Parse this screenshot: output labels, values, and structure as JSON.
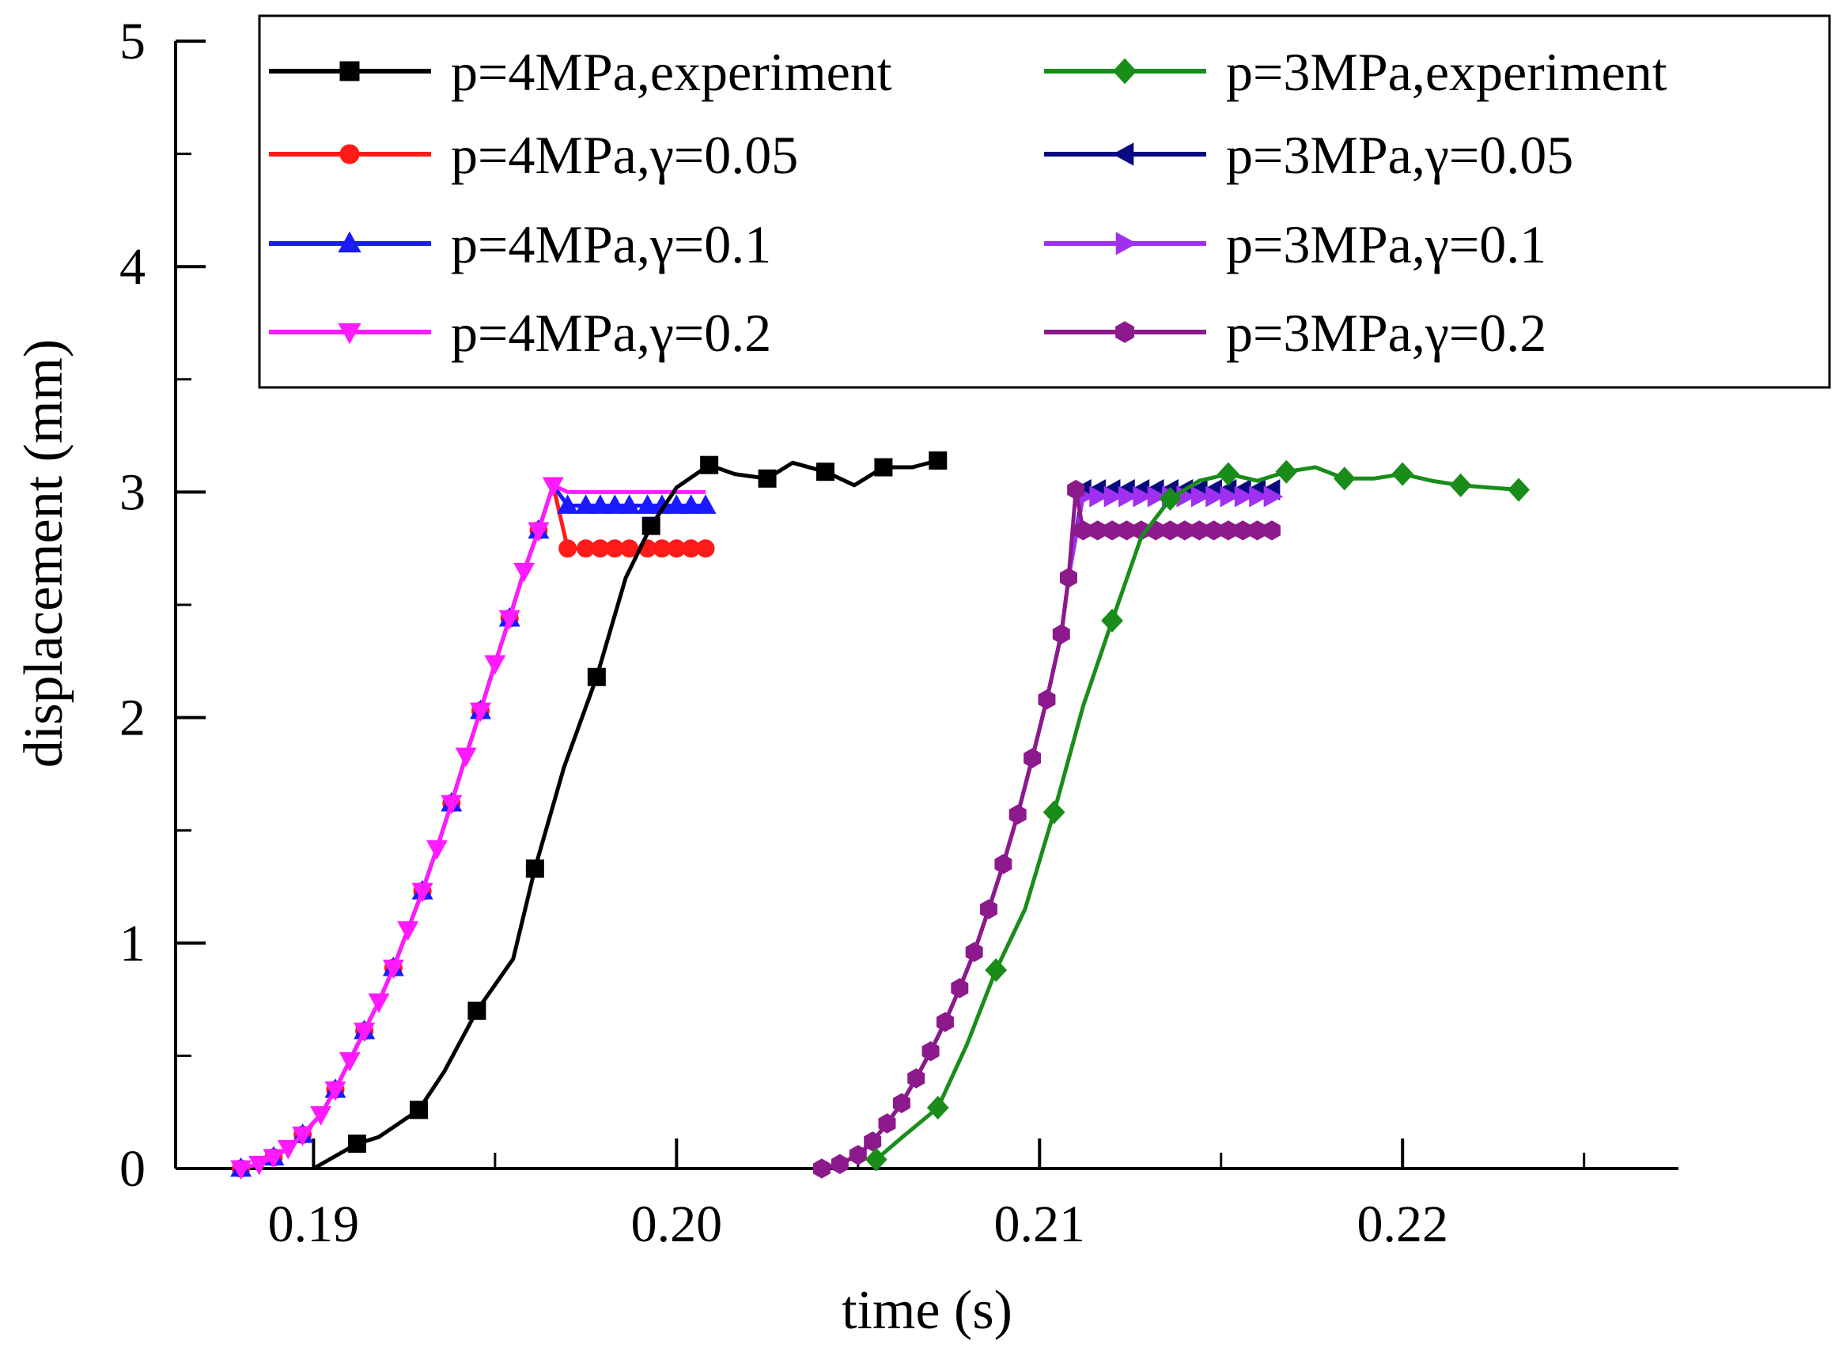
{
  "chart_data": {
    "type": "line",
    "title": "",
    "xlabel": "time (s)",
    "ylabel": "displacement (mm)",
    "xlim": [
      0.1862,
      0.2276
    ],
    "ylim": [
      0,
      5
    ],
    "xticks": [
      0.19,
      0.2,
      0.21,
      0.22
    ],
    "xtick_labels": [
      "0.19",
      "0.20",
      "0.21",
      "0.22"
    ],
    "yticks": [
      0,
      1,
      2,
      3,
      4,
      5
    ],
    "ytick_labels": [
      "0",
      "1",
      "2",
      "3",
      "4",
      "5"
    ],
    "grid": false,
    "legend_position": "top-right",
    "series": [
      {
        "name": "p=4MPa,experiment",
        "color": "#000000",
        "marker": "square",
        "x": [
          0.19,
          0.1912,
          0.1918,
          0.1929,
          0.1936,
          0.1945,
          0.1955,
          0.1961,
          0.1969,
          0.1978,
          0.1986,
          0.1993,
          0.2,
          0.2009,
          0.2016,
          0.2025,
          0.2032,
          0.2041,
          0.2049,
          0.2057,
          0.2065,
          0.2072
        ],
        "y": [
          0.0,
          0.11,
          0.14,
          0.26,
          0.43,
          0.7,
          0.93,
          1.33,
          1.78,
          2.18,
          2.62,
          2.85,
          3.02,
          3.12,
          3.08,
          3.06,
          3.13,
          3.09,
          3.03,
          3.11,
          3.11,
          3.14
        ],
        "marked": [
          false,
          true,
          false,
          true,
          false,
          true,
          false,
          true,
          false,
          true,
          false,
          true,
          false,
          true,
          false,
          true,
          false,
          true,
          false,
          true,
          false,
          true
        ]
      },
      {
        "name": "p=3MPa,experiment",
        "color": "#1a8c1a",
        "marker": "diamond",
        "x": [
          0.2055,
          0.2063,
          0.2072,
          0.208,
          0.2088,
          0.2096,
          0.2104,
          0.2112,
          0.212,
          0.2128,
          0.2136,
          0.2144,
          0.2152,
          0.216,
          0.2168,
          0.2176,
          0.2184,
          0.2192,
          0.22,
          0.2208,
          0.2216,
          0.2224,
          0.2232
        ],
        "y": [
          0.04,
          0.15,
          0.27,
          0.55,
          0.88,
          1.15,
          1.58,
          2.05,
          2.43,
          2.8,
          2.97,
          3.05,
          3.08,
          3.05,
          3.09,
          3.11,
          3.06,
          3.06,
          3.08,
          3.05,
          3.03,
          3.02,
          3.01
        ],
        "marked": [
          true,
          false,
          true,
          false,
          true,
          false,
          true,
          false,
          true,
          false,
          true,
          false,
          true,
          false,
          true,
          false,
          true,
          false,
          true,
          false,
          true,
          false,
          true
        ]
      },
      {
        "name": "p=4MPa,γ=0.05",
        "color": "#ff1a1a",
        "marker": "circle",
        "x": [
          0.188,
          0.1885,
          0.1889,
          0.1893,
          0.1897,
          0.1902,
          0.1906,
          0.191,
          0.1914,
          0.1918,
          0.1922,
          0.1926,
          0.193,
          0.1934,
          0.1938,
          0.1942,
          0.1946,
          0.195,
          0.1954,
          0.1958,
          0.1962,
          0.1966,
          0.197,
          0.1975,
          0.1979,
          0.1983,
          0.1987,
          0.1992,
          0.1996,
          0.2,
          0.2004,
          0.2008
        ],
        "y": [
          0.0,
          0.02,
          0.05,
          0.09,
          0.15,
          0.24,
          0.35,
          0.48,
          0.61,
          0.74,
          0.89,
          1.06,
          1.23,
          1.42,
          1.62,
          1.83,
          2.03,
          2.24,
          2.44,
          2.65,
          2.83,
          3.03,
          2.75,
          2.75,
          2.75,
          2.75,
          2.75,
          2.75,
          2.75,
          2.75,
          2.75,
          2.75
        ],
        "marked": [
          true,
          false,
          true,
          false,
          true,
          false,
          true,
          false,
          true,
          false,
          true,
          false,
          true,
          false,
          true,
          false,
          true,
          false,
          true,
          false,
          true,
          false,
          true,
          true,
          true,
          true,
          true,
          true,
          true,
          true,
          true,
          true
        ]
      },
      {
        "name": "p=3MPa,γ=0.05",
        "color": "#0a0a80",
        "marker": "triangle-left",
        "x": [
          0.204,
          0.2045,
          0.205,
          0.2054,
          0.2058,
          0.2062,
          0.2066,
          0.207,
          0.2074,
          0.2078,
          0.2082,
          0.2086,
          0.209,
          0.2094,
          0.2098,
          0.2102,
          0.2106,
          0.2108,
          0.2112,
          0.2116,
          0.212,
          0.2124,
          0.2128,
          0.2132,
          0.2136,
          0.214,
          0.2144,
          0.2148,
          0.2152,
          0.2156,
          0.216,
          0.2164
        ],
        "y": [
          0.0,
          0.02,
          0.06,
          0.12,
          0.2,
          0.29,
          0.4,
          0.52,
          0.65,
          0.8,
          0.96,
          1.15,
          1.35,
          1.57,
          1.82,
          2.08,
          2.37,
          2.62,
          3.01,
          3.01,
          3.01,
          3.01,
          3.01,
          3.01,
          3.01,
          3.01,
          3.01,
          3.01,
          3.01,
          3.01,
          3.01,
          3.01
        ],
        "marked": [
          false,
          false,
          false,
          false,
          false,
          false,
          false,
          false,
          false,
          false,
          false,
          false,
          false,
          false,
          false,
          false,
          false,
          false,
          true,
          true,
          true,
          true,
          true,
          true,
          true,
          true,
          true,
          true,
          true,
          true,
          true,
          true
        ]
      },
      {
        "name": "p=4MPa,γ=0.1",
        "color": "#1a1aff",
        "marker": "triangle-up",
        "x": [
          0.188,
          0.1885,
          0.1889,
          0.1893,
          0.1897,
          0.1902,
          0.1906,
          0.191,
          0.1914,
          0.1918,
          0.1922,
          0.1926,
          0.193,
          0.1934,
          0.1938,
          0.1942,
          0.1946,
          0.195,
          0.1954,
          0.1958,
          0.1962,
          0.1966,
          0.197,
          0.1975,
          0.1979,
          0.1983,
          0.1987,
          0.1992,
          0.1996,
          0.2,
          0.2004,
          0.2008
        ],
        "y": [
          0.0,
          0.02,
          0.05,
          0.09,
          0.15,
          0.24,
          0.35,
          0.48,
          0.61,
          0.74,
          0.89,
          1.06,
          1.23,
          1.42,
          1.62,
          1.83,
          2.03,
          2.24,
          2.44,
          2.65,
          2.83,
          3.03,
          2.94,
          2.94,
          2.94,
          2.94,
          2.94,
          2.94,
          2.94,
          2.94,
          2.94,
          2.94
        ],
        "marked": [
          true,
          false,
          true,
          false,
          true,
          false,
          true,
          false,
          true,
          false,
          true,
          false,
          true,
          false,
          true,
          false,
          true,
          false,
          true,
          false,
          true,
          false,
          true,
          true,
          true,
          true,
          true,
          true,
          true,
          true,
          true,
          true
        ]
      },
      {
        "name": "p=3MPa,γ=0.1",
        "color": "#a030f0",
        "marker": "triangle-right",
        "x": [
          0.204,
          0.2045,
          0.205,
          0.2054,
          0.2058,
          0.2062,
          0.2066,
          0.207,
          0.2074,
          0.2078,
          0.2082,
          0.2086,
          0.209,
          0.2094,
          0.2098,
          0.2102,
          0.2106,
          0.2108,
          0.2112,
          0.2116,
          0.212,
          0.2124,
          0.2128,
          0.2132,
          0.2136,
          0.214,
          0.2144,
          0.2148,
          0.2152,
          0.2156,
          0.216,
          0.2164
        ],
        "y": [
          0.0,
          0.02,
          0.06,
          0.12,
          0.2,
          0.29,
          0.4,
          0.52,
          0.65,
          0.8,
          0.96,
          1.15,
          1.35,
          1.57,
          1.82,
          2.08,
          2.37,
          2.62,
          2.98,
          2.98,
          2.98,
          2.98,
          2.98,
          2.98,
          2.98,
          2.98,
          2.98,
          2.98,
          2.98,
          2.98,
          2.98,
          2.98
        ],
        "marked": [
          false,
          false,
          false,
          false,
          false,
          false,
          false,
          false,
          false,
          false,
          false,
          false,
          false,
          false,
          false,
          false,
          false,
          false,
          true,
          true,
          true,
          true,
          true,
          true,
          true,
          true,
          true,
          true,
          true,
          true,
          true,
          true
        ]
      },
      {
        "name": "p=4MPa,γ=0.2",
        "color": "#ff1aff",
        "marker": "triangle-down",
        "x": [
          0.188,
          0.1885,
          0.1889,
          0.1893,
          0.1897,
          0.1902,
          0.1906,
          0.191,
          0.1914,
          0.1918,
          0.1922,
          0.1926,
          0.193,
          0.1934,
          0.1938,
          0.1942,
          0.1946,
          0.195,
          0.1954,
          0.1958,
          0.1962,
          0.1966,
          0.197,
          0.1975,
          0.1979,
          0.1983,
          0.1987,
          0.1992,
          0.1996,
          0.2,
          0.2004,
          0.2008
        ],
        "y": [
          0.0,
          0.02,
          0.05,
          0.09,
          0.15,
          0.24,
          0.35,
          0.48,
          0.61,
          0.74,
          0.89,
          1.06,
          1.23,
          1.42,
          1.62,
          1.83,
          2.03,
          2.24,
          2.44,
          2.65,
          2.83,
          3.03,
          3.0,
          3.0,
          3.0,
          3.0,
          3.0,
          3.0,
          3.0,
          3.0,
          3.0,
          3.0
        ],
        "marked": [
          true,
          true,
          true,
          true,
          true,
          true,
          true,
          true,
          true,
          true,
          true,
          true,
          true,
          true,
          true,
          true,
          true,
          true,
          true,
          true,
          true,
          true,
          false,
          false,
          false,
          false,
          false,
          false,
          false,
          false,
          false,
          false
        ]
      },
      {
        "name": "p=3MPa,γ=0.2",
        "color": "#8c1a8c",
        "marker": "hexagon",
        "x": [
          0.204,
          0.2045,
          0.205,
          0.2054,
          0.2058,
          0.2062,
          0.2066,
          0.207,
          0.2074,
          0.2078,
          0.2082,
          0.2086,
          0.209,
          0.2094,
          0.2098,
          0.2102,
          0.2106,
          0.2108,
          0.211,
          0.2112,
          0.2116,
          0.212,
          0.2124,
          0.2128,
          0.2132,
          0.2136,
          0.214,
          0.2144,
          0.2148,
          0.2152,
          0.2156,
          0.216,
          0.2164
        ],
        "y": [
          0.0,
          0.02,
          0.06,
          0.12,
          0.2,
          0.29,
          0.4,
          0.52,
          0.65,
          0.8,
          0.96,
          1.15,
          1.35,
          1.57,
          1.82,
          2.08,
          2.37,
          2.62,
          3.01,
          2.83,
          2.83,
          2.83,
          2.83,
          2.83,
          2.83,
          2.83,
          2.83,
          2.83,
          2.83,
          2.83,
          2.83,
          2.83,
          2.83
        ],
        "marked": [
          true,
          true,
          true,
          true,
          true,
          true,
          true,
          true,
          true,
          true,
          true,
          true,
          true,
          true,
          true,
          true,
          true,
          true,
          true,
          true,
          true,
          true,
          true,
          true,
          true,
          true,
          true,
          true,
          true,
          true,
          true,
          true,
          true
        ]
      }
    ],
    "legend_order": [
      "p=4MPa,experiment",
      "p=3MPa,experiment",
      "p=4MPa,γ=0.05",
      "p=3MPa,γ=0.05",
      "p=4MPa,γ=0.1",
      "p=3MPa,γ=0.1",
      "p=4MPa,γ=0.2",
      "p=3MPa,γ=0.2"
    ]
  }
}
